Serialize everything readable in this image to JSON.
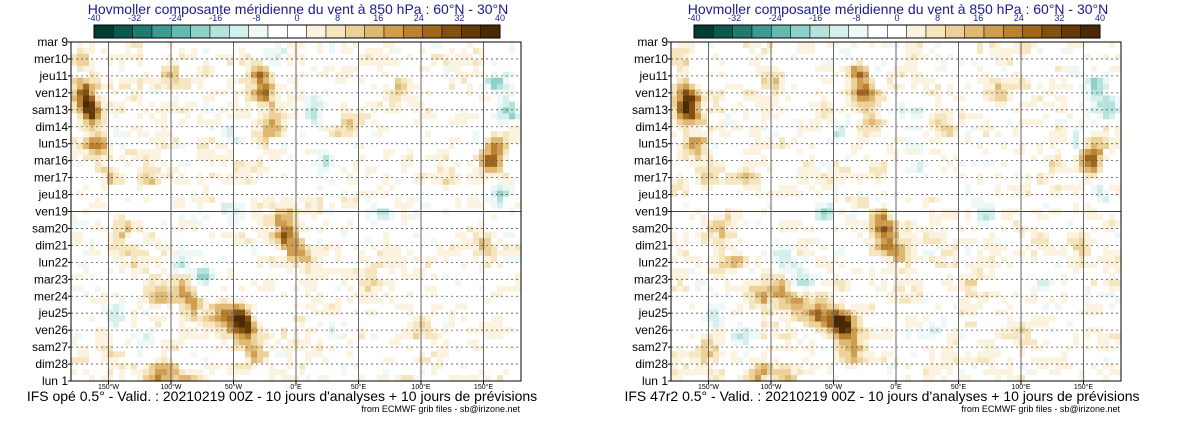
{
  "chart_data": [
    {
      "type": "heatmap",
      "title": "Hovmoller composante méridienne du vent à 850 hPa : 60°N - 30°N",
      "colorbar": {
        "ticks": [
          "-40",
          "-32",
          "-24",
          "-16",
          "-8",
          "0",
          "8",
          "16",
          "24",
          "32",
          "40"
        ],
        "colors": [
          "#003c30",
          "#0b5a50",
          "#1f7a70",
          "#3d9a90",
          "#66b9b0",
          "#8fd0c8",
          "#b5e2dc",
          "#d5efec",
          "#eef8f7",
          "#ffffff",
          "#ffffff",
          "#fbf2e0",
          "#f6e6c0",
          "#ecd198",
          "#dfb874",
          "#cf9d50",
          "#b98132",
          "#a0661c",
          "#82500f",
          "#633a08",
          "#4a2a05"
        ]
      },
      "y_labels": [
        {
          "text": "mar 9",
          "weekend": false
        },
        {
          "text": "mer10",
          "weekend": false
        },
        {
          "text": "jeu11",
          "weekend": false
        },
        {
          "text": "ven12",
          "weekend": false
        },
        {
          "text": "sam13",
          "weekend": false
        },
        {
          "text": "dim14",
          "weekend": true
        },
        {
          "text": "lun15",
          "weekend": false
        },
        {
          "text": "mar16",
          "weekend": false
        },
        {
          "text": "mer17",
          "weekend": false
        },
        {
          "text": "jeu18",
          "weekend": false
        },
        {
          "text": "ven19",
          "weekend": false
        },
        {
          "text": "sam20",
          "weekend": false
        },
        {
          "text": "dim21",
          "weekend": true
        },
        {
          "text": "lun22",
          "weekend": false
        },
        {
          "text": "mar23",
          "weekend": false
        },
        {
          "text": "mer24",
          "weekend": false
        },
        {
          "text": "jeu25",
          "weekend": false
        },
        {
          "text": "ven26",
          "weekend": false
        },
        {
          "text": "sam27",
          "weekend": false
        },
        {
          "text": "dim28",
          "weekend": true
        },
        {
          "text": "lun 1",
          "weekend": false
        }
      ],
      "analysis_forecast_boundary": "ven19",
      "x_range": [
        -180,
        180
      ],
      "x_ticks": [
        {
          "lon": -150,
          "label": "150°W"
        },
        {
          "lon": -100,
          "label": "100°W"
        },
        {
          "lon": -50,
          "label": "50°W"
        },
        {
          "lon": 0,
          "label": "0°E"
        },
        {
          "lon": 50,
          "label": "50°E"
        },
        {
          "lon": 100,
          "label": "100°E"
        },
        {
          "lon": 150,
          "label": "150°E"
        }
      ],
      "features": [
        {
          "lon": -165,
          "day": 4,
          "v": 35
        },
        {
          "lon": -168,
          "day": 3,
          "v": 22
        },
        {
          "lon": -160,
          "day": 6,
          "v": 18
        },
        {
          "lon": -172,
          "day": 1,
          "v": 14
        },
        {
          "lon": -150,
          "day": 8,
          "v": 12
        },
        {
          "lon": -140,
          "day": 11,
          "v": 14
        },
        {
          "lon": -130,
          "day": 13,
          "v": 12
        },
        {
          "lon": -110,
          "day": 15,
          "v": 14
        },
        {
          "lon": -90,
          "day": 14.5,
          "v": 16
        },
        {
          "lon": -80,
          "day": 15.5,
          "v": 14
        },
        {
          "lon": -60,
          "day": 16,
          "v": 22
        },
        {
          "lon": -45,
          "day": 16.3,
          "v": 34
        },
        {
          "lon": -40,
          "day": 17,
          "v": 22
        },
        {
          "lon": -35,
          "day": 18.5,
          "v": 16
        },
        {
          "lon": -25,
          "day": 3,
          "v": 24
        },
        {
          "lon": -30,
          "day": 2,
          "v": 18
        },
        {
          "lon": -20,
          "day": 5,
          "v": 16
        },
        {
          "lon": -12,
          "day": 10.5,
          "v": 18
        },
        {
          "lon": -8,
          "day": 11.5,
          "v": 24
        },
        {
          "lon": 2,
          "day": 12.5,
          "v": 18
        },
        {
          "lon": -110,
          "day": 19.5,
          "v": 22
        },
        {
          "lon": -90,
          "day": 20,
          "v": 16
        },
        {
          "lon": 40,
          "day": 5,
          "v": 12
        },
        {
          "lon": 80,
          "day": 3,
          "v": 10
        },
        {
          "lon": 120,
          "day": 8,
          "v": 10
        },
        {
          "lon": 155,
          "day": 7,
          "v": 26
        },
        {
          "lon": 160,
          "day": 6,
          "v": 14
        },
        {
          "lon": 150,
          "day": 12,
          "v": 12
        },
        {
          "lon": -120,
          "day": 8,
          "v": 10
        },
        {
          "lon": -100,
          "day": 2,
          "v": 10
        },
        {
          "lon": -150,
          "day": 18,
          "v": 12
        },
        {
          "lon": 60,
          "day": 14,
          "v": 10
        },
        {
          "lon": 100,
          "day": 17,
          "v": 8
        },
        {
          "lon": -15,
          "day": 1,
          "v": -12
        },
        {
          "lon": 15,
          "day": 4,
          "v": -14
        },
        {
          "lon": 20,
          "day": 7,
          "v": -12
        },
        {
          "lon": -55,
          "day": 10,
          "v": -14
        },
        {
          "lon": -90,
          "day": 13,
          "v": -12
        },
        {
          "lon": -75,
          "day": 14,
          "v": -14
        },
        {
          "lon": 160,
          "day": 2.5,
          "v": -16
        },
        {
          "lon": 170,
          "day": 4,
          "v": -18
        },
        {
          "lon": 165,
          "day": 9,
          "v": -12
        },
        {
          "lon": 145,
          "day": 6,
          "v": -10
        },
        {
          "lon": 70,
          "day": 10,
          "v": -10
        },
        {
          "lon": -145,
          "day": 16,
          "v": -12
        },
        {
          "lon": -120,
          "day": 17.5,
          "v": -10
        },
        {
          "lon": 30,
          "day": 17,
          "v": -10
        },
        {
          "lon": 120,
          "day": 14,
          "v": -8
        },
        {
          "lon": -50,
          "day": 5.5,
          "v": -10
        }
      ],
      "caption": "IFS opé 0.5° - Valid. : 20210219 00Z - 10 jours d'analyses + 10 jours de prévisions",
      "credit": "from ECMWF grib files - sb@irizone.net"
    },
    {
      "type": "heatmap",
      "title": "Hovmoller composante méridienne du vent à 850 hPa : 60°N - 30°N",
      "colorbar": {
        "ticks": [
          "-40",
          "-32",
          "-24",
          "-16",
          "-8",
          "0",
          "8",
          "16",
          "24",
          "32",
          "40"
        ],
        "colors": [
          "#003c30",
          "#0b5a50",
          "#1f7a70",
          "#3d9a90",
          "#66b9b0",
          "#8fd0c8",
          "#b5e2dc",
          "#d5efec",
          "#eef8f7",
          "#ffffff",
          "#ffffff",
          "#fbf2e0",
          "#f6e6c0",
          "#ecd198",
          "#dfb874",
          "#cf9d50",
          "#b98132",
          "#a0661c",
          "#82500f",
          "#633a08",
          "#4a2a05"
        ]
      },
      "y_labels": [
        {
          "text": "mar 9",
          "weekend": false
        },
        {
          "text": "mer10",
          "weekend": false
        },
        {
          "text": "jeu11",
          "weekend": false
        },
        {
          "text": "ven12",
          "weekend": false
        },
        {
          "text": "sam13",
          "weekend": false
        },
        {
          "text": "dim14",
          "weekend": true
        },
        {
          "text": "lun15",
          "weekend": false
        },
        {
          "text": "mar16",
          "weekend": false
        },
        {
          "text": "mer17",
          "weekend": false
        },
        {
          "text": "jeu18",
          "weekend": false
        },
        {
          "text": "ven19",
          "weekend": false
        },
        {
          "text": "sam20",
          "weekend": false
        },
        {
          "text": "dim21",
          "weekend": true
        },
        {
          "text": "lun22",
          "weekend": false
        },
        {
          "text": "mar23",
          "weekend": false
        },
        {
          "text": "mer24",
          "weekend": false
        },
        {
          "text": "jeu25",
          "weekend": false
        },
        {
          "text": "ven26",
          "weekend": false
        },
        {
          "text": "sam27",
          "weekend": false
        },
        {
          "text": "dim28",
          "weekend": true
        },
        {
          "text": "lun 1",
          "weekend": false
        }
      ],
      "analysis_forecast_boundary": "ven19",
      "x_range": [
        -180,
        180
      ],
      "x_ticks": [
        {
          "lon": -150,
          "label": "150°W"
        },
        {
          "lon": -100,
          "label": "100°W"
        },
        {
          "lon": -50,
          "label": "50°W"
        },
        {
          "lon": 0,
          "label": "0°E"
        },
        {
          "lon": 50,
          "label": "50°E"
        },
        {
          "lon": 100,
          "label": "100°E"
        },
        {
          "lon": 150,
          "label": "150°E"
        }
      ],
      "features": [
        {
          "lon": -165,
          "day": 4,
          "v": 35
        },
        {
          "lon": -168,
          "day": 3,
          "v": 22
        },
        {
          "lon": -160,
          "day": 6,
          "v": 18
        },
        {
          "lon": -172,
          "day": 1,
          "v": 14
        },
        {
          "lon": -150,
          "day": 8,
          "v": 12
        },
        {
          "lon": -140,
          "day": 11,
          "v": 14
        },
        {
          "lon": -130,
          "day": 13,
          "v": 12
        },
        {
          "lon": -110,
          "day": 15,
          "v": 16
        },
        {
          "lon": -92,
          "day": 14.5,
          "v": 16
        },
        {
          "lon": -80,
          "day": 15.5,
          "v": 16
        },
        {
          "lon": -62,
          "day": 16,
          "v": 24
        },
        {
          "lon": -46,
          "day": 16.4,
          "v": 34
        },
        {
          "lon": -40,
          "day": 17,
          "v": 24
        },
        {
          "lon": -35,
          "day": 18.5,
          "v": 16
        },
        {
          "lon": -25,
          "day": 3,
          "v": 24
        },
        {
          "lon": -30,
          "day": 2,
          "v": 18
        },
        {
          "lon": -20,
          "day": 5,
          "v": 16
        },
        {
          "lon": -12,
          "day": 10.5,
          "v": 18
        },
        {
          "lon": -8,
          "day": 11.5,
          "v": 24
        },
        {
          "lon": 2,
          "day": 12.5,
          "v": 18
        },
        {
          "lon": -110,
          "day": 19.5,
          "v": 20
        },
        {
          "lon": -88,
          "day": 20,
          "v": 16
        },
        {
          "lon": 40,
          "day": 5,
          "v": 12
        },
        {
          "lon": 80,
          "day": 3,
          "v": 10
        },
        {
          "lon": 120,
          "day": 8,
          "v": 10
        },
        {
          "lon": 155,
          "day": 7,
          "v": 26
        },
        {
          "lon": 160,
          "day": 6,
          "v": 14
        },
        {
          "lon": 150,
          "day": 12,
          "v": 12
        },
        {
          "lon": -120,
          "day": 8,
          "v": 10
        },
        {
          "lon": -100,
          "day": 2,
          "v": 10
        },
        {
          "lon": -150,
          "day": 18,
          "v": 12
        },
        {
          "lon": 60,
          "day": 14,
          "v": 10
        },
        {
          "lon": 100,
          "day": 17,
          "v": 8
        },
        {
          "lon": -15,
          "day": 1,
          "v": -12
        },
        {
          "lon": 15,
          "day": 4,
          "v": -14
        },
        {
          "lon": 20,
          "day": 7,
          "v": -12
        },
        {
          "lon": -55,
          "day": 10,
          "v": -14
        },
        {
          "lon": -90,
          "day": 13,
          "v": -12
        },
        {
          "lon": -75,
          "day": 14,
          "v": -14
        },
        {
          "lon": 160,
          "day": 2.5,
          "v": -16
        },
        {
          "lon": 170,
          "day": 4,
          "v": -18
        },
        {
          "lon": 165,
          "day": 9,
          "v": -12
        },
        {
          "lon": 145,
          "day": 6,
          "v": -10
        },
        {
          "lon": 70,
          "day": 10,
          "v": -10
        },
        {
          "lon": -145,
          "day": 16,
          "v": -12
        },
        {
          "lon": -120,
          "day": 17.5,
          "v": -10
        },
        {
          "lon": 30,
          "day": 17,
          "v": -10
        },
        {
          "lon": 120,
          "day": 14,
          "v": -8
        },
        {
          "lon": -50,
          "day": 5.5,
          "v": -10
        }
      ],
      "caption": "IFS 47r2 0.5° - Valid. : 20210219 00Z - 10 jours d'analyses + 10 jours de prévisions",
      "credit": "from ECMWF grib files - sb@irizone.net"
    }
  ],
  "theme": {
    "title_color": "#1a1a8c",
    "weekend_color": "#dd0000",
    "label_color": "#000000"
  }
}
